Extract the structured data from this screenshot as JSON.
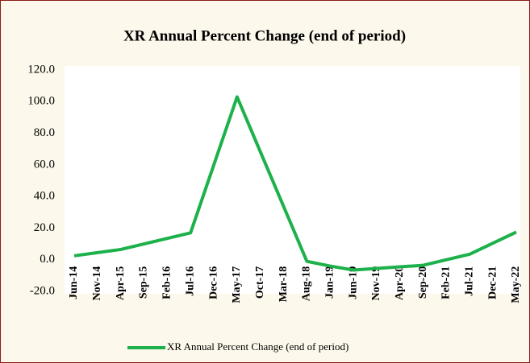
{
  "chart_data": {
    "type": "line",
    "title": "XR Annual Percent Change (end of period)",
    "categories": [
      "Jun-14",
      "Nov-14",
      "Apr-15",
      "Sep-15",
      "Feb-16",
      "Jul-16",
      "Dec-16",
      "May-17",
      "Oct-17",
      "Mar-18",
      "Aug-18",
      "Jan-19",
      "Jun-19",
      "Nov-19",
      "Apr-20",
      "Sep-20",
      "Feb-21",
      "Jul-21",
      "Dec-21",
      "May-22"
    ],
    "series": [
      {
        "name": "XR Annual Percent Change (end of period)",
        "color": "#1db14b",
        "values": [
          2.5,
          4.5,
          6.5,
          10,
          13.5,
          17,
          60,
          103,
          68.3,
          33.7,
          -1,
          -4,
          -6.5,
          -5.5,
          -4.5,
          -3.5,
          0,
          3.5,
          10.5,
          17.5
        ]
      }
    ],
    "ylim": [
      -20,
      120
    ],
    "yticks": [
      {
        "value": -20,
        "label": "-20.0"
      },
      {
        "value": 0,
        "label": "0.0"
      },
      {
        "value": 20,
        "label": "20.0"
      },
      {
        "value": 40,
        "label": "40.0"
      },
      {
        "value": 60,
        "label": "60.0"
      },
      {
        "value": 80,
        "label": "80.0"
      },
      {
        "value": 100,
        "label": "100.0"
      },
      {
        "value": 120,
        "label": "120.0"
      }
    ],
    "legend": "bottom"
  }
}
